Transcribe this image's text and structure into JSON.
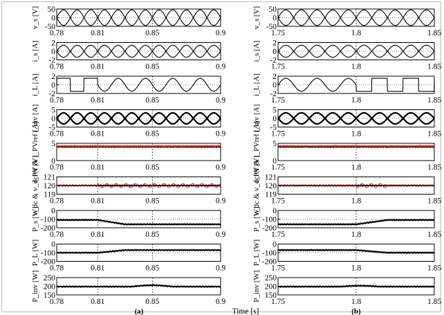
{
  "chart_data": {
    "type": "line",
    "panel_labels": [
      "(a)",
      "(b)"
    ],
    "time_axis_label": "Time [s]",
    "columns": [
      {
        "caption": "(a)",
        "x_ticks_main": [
          "0.78",
          "0.81",
          "0.85",
          "0.9"
        ],
        "x_ticks_last": [
          "0.78",
          "0.81",
          "0.85",
          "0.9"
        ],
        "xlim": [
          0.78,
          0.9
        ],
        "events": [
          0.81,
          0.85
        ]
      },
      {
        "caption": "(b)",
        "x_ticks_main": [
          "1.75",
          "1.8",
          "1.85"
        ],
        "x_ticks_last": [
          "1.75",
          "1.8",
          "1.85"
        ],
        "xlim": [
          1.75,
          1.85
        ],
        "events": [
          1.8
        ]
      }
    ],
    "rows": [
      {
        "key": "vs",
        "ylabel": "v_s [V]",
        "ylim": [
          -50,
          50
        ],
        "yticks": [
          "50",
          "0",
          "-50"
        ],
        "wave": "sine",
        "amplitude": 45,
        "level": 0
      },
      {
        "key": "is",
        "ylabel": "i_s [A]",
        "ylim": [
          -2,
          2
        ],
        "yticks": [
          "2",
          "0",
          "-2"
        ],
        "wave": "sine",
        "amplitude": 1.4,
        "level": 0
      },
      {
        "key": "iL",
        "ylabel": "i_L [A]",
        "ylim": [
          -2,
          2
        ],
        "yticks": [
          "2",
          "0",
          "-2"
        ],
        "wave": "square-sine",
        "amplitude": 1.5,
        "level": 0
      },
      {
        "key": "iinv",
        "ylabel": "i_inv [A]",
        "ylim": [
          -5,
          5
        ],
        "yticks": [
          "5",
          "0",
          "-5"
        ],
        "wave": "sine",
        "amplitude": 3.2,
        "level": 0
      },
      {
        "key": "ipv",
        "ylabel": "i_PV & i_PVref [A]",
        "ylim": [
          0,
          5
        ],
        "yticks": [
          "5",
          "0"
        ],
        "wave": "flat",
        "level": 4.0,
        "ref_level": 4.2
      },
      {
        "key": "vdc",
        "ylabel": "v_dc & v_dcref [V]",
        "ylim": [
          119,
          121
        ],
        "yticks": [
          "121",
          "120",
          "119"
        ],
        "wave": "flat",
        "level": 120.0,
        "ref_level": 120.0
      },
      {
        "key": "ps",
        "ylabel": "P_s [W]",
        "ylim": [
          -200,
          0
        ],
        "yticks": [
          "0",
          "-100",
          "-200"
        ],
        "wave": "flat",
        "level": -110
      },
      {
        "key": "pl",
        "ylabel": "P_L [W]",
        "ylim": [
          -200,
          0
        ],
        "yticks": [
          "0",
          "-100",
          "-200"
        ],
        "wave": "flat",
        "level": -100
      },
      {
        "key": "pinv",
        "ylabel": "P_inv [W]",
        "ylim": [
          150,
          250
        ],
        "yticks": [
          "250",
          "200",
          "150"
        ],
        "wave": "flat",
        "level": 198
      }
    ]
  }
}
